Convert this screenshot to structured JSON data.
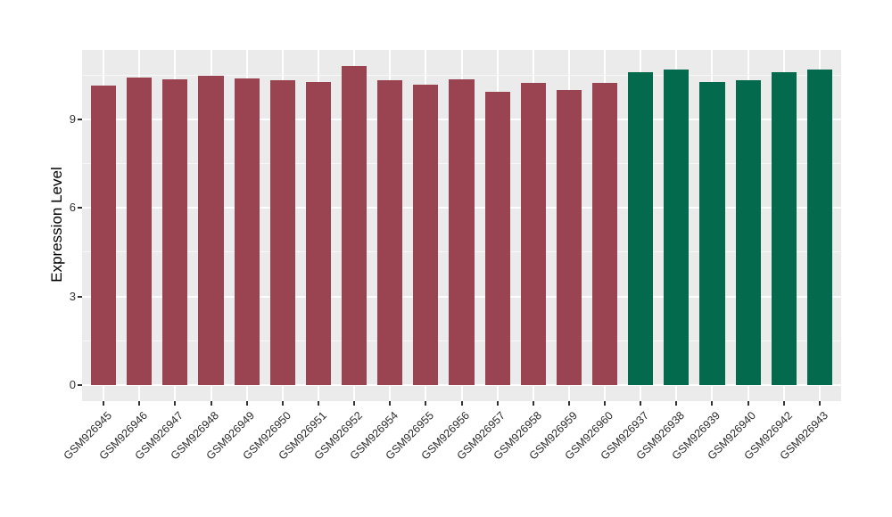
{
  "figure": {
    "y_axis_title": "Expression Level",
    "panel_background": "#EBEBEB",
    "gridline_color": "#FFFFFF",
    "tick_mark_color": "#333333",
    "axis_text_color": "#333333"
  },
  "chart_data": {
    "type": "bar",
    "title": "",
    "xlabel": "",
    "ylabel": "Expression Level",
    "categories": [
      "GSM926945",
      "GSM926946",
      "GSM926947",
      "GSM926948",
      "GSM926949",
      "GSM926950",
      "GSM926951",
      "GSM926952",
      "GSM926954",
      "GSM926955",
      "GSM926956",
      "GSM926957",
      "GSM926958",
      "GSM926959",
      "GSM926960",
      "GSM926937",
      "GSM926938",
      "GSM926939",
      "GSM926940",
      "GSM926942",
      "GSM926943"
    ],
    "values": [
      10.15,
      10.43,
      10.37,
      10.49,
      10.4,
      10.34,
      10.28,
      10.81,
      10.34,
      10.19,
      10.35,
      9.93,
      10.24,
      10.0,
      10.24,
      10.59,
      10.71,
      10.28,
      10.34,
      10.61,
      10.69
    ],
    "bar_colors": [
      "#9A4451",
      "#9A4451",
      "#9A4451",
      "#9A4451",
      "#9A4451",
      "#9A4451",
      "#9A4451",
      "#9A4451",
      "#9A4451",
      "#9A4451",
      "#9A4451",
      "#9A4451",
      "#9A4451",
      "#9A4451",
      "#9A4451",
      "#046A4E",
      "#046A4E",
      "#046A4E",
      "#046A4E",
      "#046A4E",
      "#046A4E"
    ],
    "group_colors": {
      "left_group": "#9A4451",
      "right_group": "#046A4E"
    },
    "yticks": [
      0,
      3,
      6,
      9
    ],
    "ytick_labels": [
      "0",
      "3",
      "6",
      "9"
    ],
    "yticks_minor": [
      1.5,
      4.5,
      7.5,
      10.5
    ],
    "ylim": [
      -0.55,
      11.36
    ],
    "bar_width_fraction": 0.7,
    "grid": true,
    "legend_position": "none"
  }
}
